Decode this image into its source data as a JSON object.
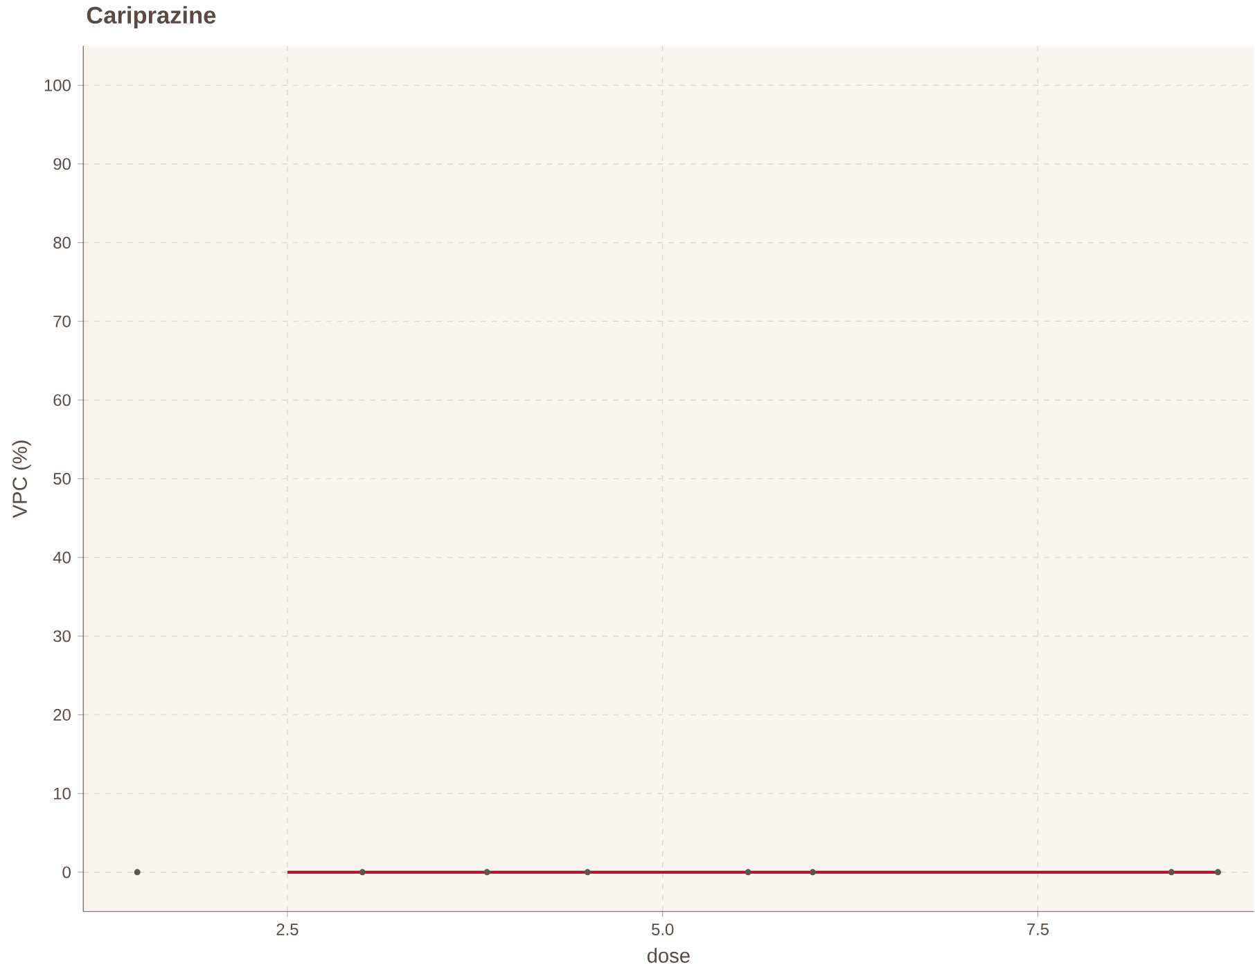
{
  "chart_data": {
    "type": "scatter",
    "title": "Cariprazine",
    "xlabel": "dose",
    "ylabel": "VPC (%)",
    "xlim": [
      1.14,
      8.94
    ],
    "ylim": [
      -5,
      105
    ],
    "xticks": [
      {
        "value": 2.5,
        "label": "2.5"
      },
      {
        "value": 5.0,
        "label": "5.0"
      },
      {
        "value": 7.5,
        "label": "7.5"
      }
    ],
    "yticks": [
      0,
      10,
      20,
      30,
      40,
      50,
      60,
      70,
      80,
      90,
      100
    ],
    "grid": true,
    "series": [
      {
        "type": "line",
        "color": "#b2182b",
        "x": [
          2.5,
          8.7
        ],
        "values": [
          0,
          0
        ],
        "marker": "none"
      },
      {
        "color": "#5c5550",
        "marker": "circle",
        "x": [
          1.5,
          3.0,
          3.83,
          4.5,
          5.57,
          6.0,
          8.39,
          8.7
        ],
        "values": [
          0,
          0,
          0,
          0,
          0,
          0,
          0,
          0
        ]
      }
    ]
  }
}
